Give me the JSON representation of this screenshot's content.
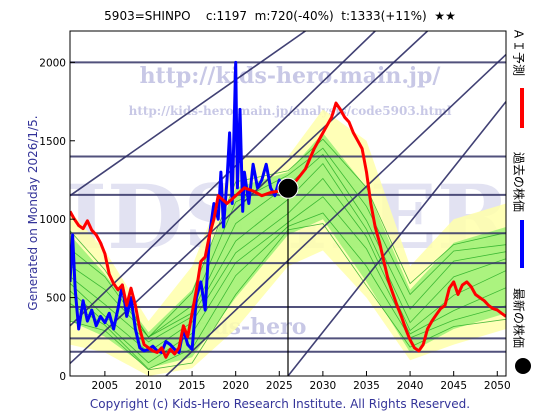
{
  "header": {
    "text": "5903=SHINPO    c:1197  m:720(-40%)  t:1333(+11%)  ★★"
  },
  "side_text": "Generated on Monday 2026/1/5.",
  "footer": "Copyright (c) Kids-Hero Research Institute. All Rights Reserved.",
  "watermarks": {
    "url_top": "http://kids-hero.main.jp/",
    "url_analysis": "http://kids-hero.main.jp/analysis/code5903.html",
    "big": "KIDS-HERO",
    "small": "kids-hero"
  },
  "legend": [
    {
      "label": "ＡＩ予測",
      "color": "#ff0000"
    },
    {
      "label": "過去の株価",
      "color": "#0000ff"
    },
    {
      "label": "最新の株価",
      "color": "#000000"
    }
  ],
  "colors": {
    "ai_prediction": "#ff0000",
    "past_price": "#0000ff",
    "latest_marker": "#000000",
    "band_outer": "#ffffaa",
    "band_inner": "#88ee66",
    "band_lines": "#22aa22",
    "trend_lines": "#2d2d66",
    "levels": "#333366"
  },
  "chart_data": {
    "type": "line",
    "title": "5903=SHINPO    c:1197  m:720(-40%)  t:1333(+11%)  ★★",
    "xlabel": "",
    "ylabel": "",
    "xlim": [
      2001,
      2051
    ],
    "ylim": [
      0,
      2200
    ],
    "x_ticks": [
      2005,
      2010,
      2015,
      2020,
      2025,
      2030,
      2035,
      2040,
      2045,
      2050
    ],
    "y_ticks": [
      0,
      500,
      1000,
      1500,
      2000
    ],
    "grid": false,
    "legend_position": "right",
    "latest_point": {
      "x": 2026.0,
      "y": 1197
    },
    "horizontal_levels": [
      2000,
      1400,
      1155,
      910,
      720,
      440,
      240,
      155
    ],
    "vertical_marker_x": 2026.0,
    "trend_lines": [
      {
        "x1": 2001,
        "y1": 80,
        "x2": 2042,
        "y2": 2200
      },
      {
        "x1": 2001,
        "y1": 1150,
        "x2": 2028,
        "y2": 2200
      },
      {
        "x1": 2012,
        "y1": 0,
        "x2": 2051,
        "y2": 2050
      },
      {
        "x1": 2026,
        "y1": 0,
        "x2": 2051,
        "y2": 1750
      },
      {
        "x1": 2001,
        "y1": 320,
        "x2": 2036,
        "y2": 2200
      }
    ],
    "series": [
      {
        "name": "過去の株価",
        "color": "#0000ff",
        "x": [
          2001,
          2001.3,
          2001.6,
          2002,
          2002.5,
          2003,
          2003.5,
          2004,
          2004.5,
          2005,
          2005.5,
          2006,
          2006.5,
          2007,
          2007.5,
          2008,
          2008.5,
          2009,
          2009.5,
          2010,
          2010.5,
          2011,
          2011.5,
          2012,
          2012.5,
          2013,
          2013.5,
          2014,
          2014.5,
          2015,
          2015.5,
          2016,
          2016.5,
          2017,
          2017.5,
          2018,
          2018.3,
          2018.6,
          2019,
          2019.3,
          2019.6,
          2020,
          2020.2,
          2020.5,
          2020.8,
          2021,
          2021.5,
          2022,
          2022.5,
          2023,
          2023.5,
          2024,
          2024.5,
          2025,
          2025.5,
          2026
        ],
        "values": [
          600,
          900,
          550,
          300,
          480,
          350,
          420,
          320,
          380,
          340,
          400,
          300,
          430,
          580,
          380,
          500,
          300,
          180,
          160,
          170,
          190,
          160,
          150,
          220,
          200,
          170,
          150,
          300,
          200,
          170,
          500,
          600,
          420,
          900,
          1100,
          1000,
          1300,
          950,
          1250,
          1550,
          1100,
          2000,
          1200,
          1700,
          1050,
          1300,
          1100,
          1350,
          1200,
          1250,
          1350,
          1200,
          1150,
          1250,
          1150,
          1197
        ]
      },
      {
        "name": "ＡＩ予測",
        "color": "#ff0000",
        "x": [
          2001,
          2001.5,
          2002,
          2002.5,
          2003,
          2003.5,
          2004,
          2004.5,
          2005,
          2005.5,
          2006,
          2006.5,
          2007,
          2007.5,
          2008,
          2008.5,
          2009,
          2009.5,
          2010,
          2010.5,
          2011,
          2011.5,
          2012,
          2012.5,
          2013,
          2013.5,
          2014,
          2014.5,
          2015,
          2015.5,
          2016,
          2016.5,
          2017,
          2017.5,
          2018,
          2019,
          2020,
          2021,
          2022,
          2023,
          2024,
          2025,
          2025.5,
          2026,
          2027,
          2028,
          2029,
          2030,
          2030.5,
          2031,
          2031.5,
          2032,
          2032.5,
          2033,
          2033.5,
          2034,
          2034.5,
          2035,
          2035.5,
          2036,
          2036.5,
          2037,
          2037.5,
          2038,
          2038.5,
          2039,
          2039.5,
          2040,
          2040.5,
          2041,
          2041.5,
          2042,
          2042.5,
          2043,
          2043.5,
          2044,
          2044.5,
          2045,
          2045.5,
          2046,
          2046.5,
          2047,
          2047.5,
          2048,
          2048.5,
          2049,
          2049.5,
          2050,
          2050.5,
          2051
        ],
        "values": [
          1050,
          1000,
          960,
          940,
          990,
          930,
          900,
          850,
          780,
          650,
          590,
          550,
          580,
          450,
          560,
          450,
          300,
          200,
          180,
          160,
          150,
          180,
          120,
          170,
          140,
          180,
          320,
          250,
          400,
          550,
          730,
          760,
          900,
          1000,
          1150,
          1100,
          1150,
          1200,
          1180,
          1150,
          1170,
          1180,
          1200,
          1180,
          1250,
          1320,
          1450,
          1550,
          1600,
          1650,
          1740,
          1700,
          1650,
          1620,
          1550,
          1500,
          1450,
          1300,
          1100,
          950,
          850,
          730,
          610,
          530,
          450,
          380,
          300,
          230,
          180,
          160,
          200,
          300,
          350,
          390,
          430,
          450,
          560,
          600,
          520,
          580,
          600,
          570,
          520,
          500,
          480,
          450,
          430,
          420,
          400,
          380
        ]
      }
    ],
    "band": {
      "x": [
        2001,
        2005,
        2010,
        2015,
        2020,
        2026,
        2030,
        2035,
        2040,
        2045,
        2051
      ],
      "outer_low": [
        200,
        150,
        0,
        50,
        300,
        700,
        800,
        500,
        100,
        200,
        300
      ],
      "outer_high": [
        1050,
        800,
        350,
        700,
        1400,
        1400,
        1700,
        1500,
        700,
        1000,
        1100
      ],
      "inner_low": [
        350,
        250,
        50,
        120,
        500,
        900,
        1000,
        600,
        150,
        300,
        400
      ],
      "inner_high": [
        900,
        650,
        280,
        550,
        1200,
        1300,
        1550,
        1200,
        550,
        850,
        950
      ]
    }
  }
}
